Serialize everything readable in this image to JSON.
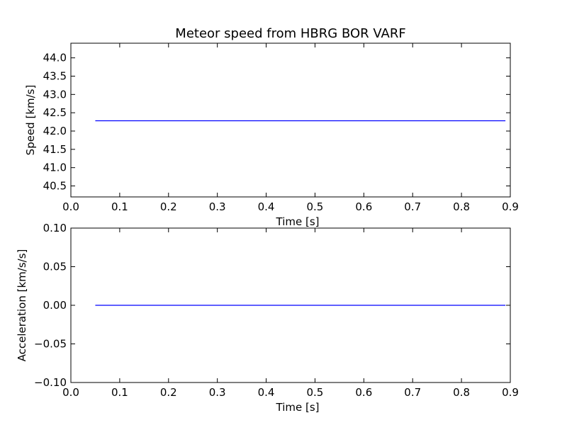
{
  "title": "Meteor speed from  HBRG BOR VARF",
  "colors": {
    "line": "#0000ff",
    "axes": "#000000",
    "background": "#ffffff"
  },
  "chart_data": [
    {
      "type": "line",
      "xlabel": "Time [s]",
      "ylabel": "Speed [km/s]",
      "xlim": [
        0.0,
        0.9
      ],
      "ylim": [
        40.2,
        44.4
      ],
      "grid": false,
      "xticks": [
        "0.0",
        "0.1",
        "0.2",
        "0.3",
        "0.4",
        "0.5",
        "0.6",
        "0.7",
        "0.8",
        "0.9"
      ],
      "yticks": [
        "40.5",
        "41.0",
        "41.5",
        "42.0",
        "42.5",
        "43.0",
        "43.5",
        "44.0"
      ],
      "series": [
        {
          "x": [
            0.05,
            0.89
          ],
          "y": [
            42.28,
            42.28
          ]
        }
      ]
    },
    {
      "type": "line",
      "xlabel": "Time [s]",
      "ylabel": "Acceleration [km/s/s]",
      "xlim": [
        0.0,
        0.9
      ],
      "ylim": [
        -0.1,
        0.1
      ],
      "grid": false,
      "xticks": [
        "0.0",
        "0.1",
        "0.2",
        "0.3",
        "0.4",
        "0.5",
        "0.6",
        "0.7",
        "0.8",
        "0.9"
      ],
      "yticks": [
        "−0.10",
        "−0.05",
        "0.00",
        "0.05",
        "0.10"
      ],
      "series": [
        {
          "x": [
            0.05,
            0.89
          ],
          "y": [
            0.0,
            0.0
          ]
        }
      ]
    }
  ]
}
